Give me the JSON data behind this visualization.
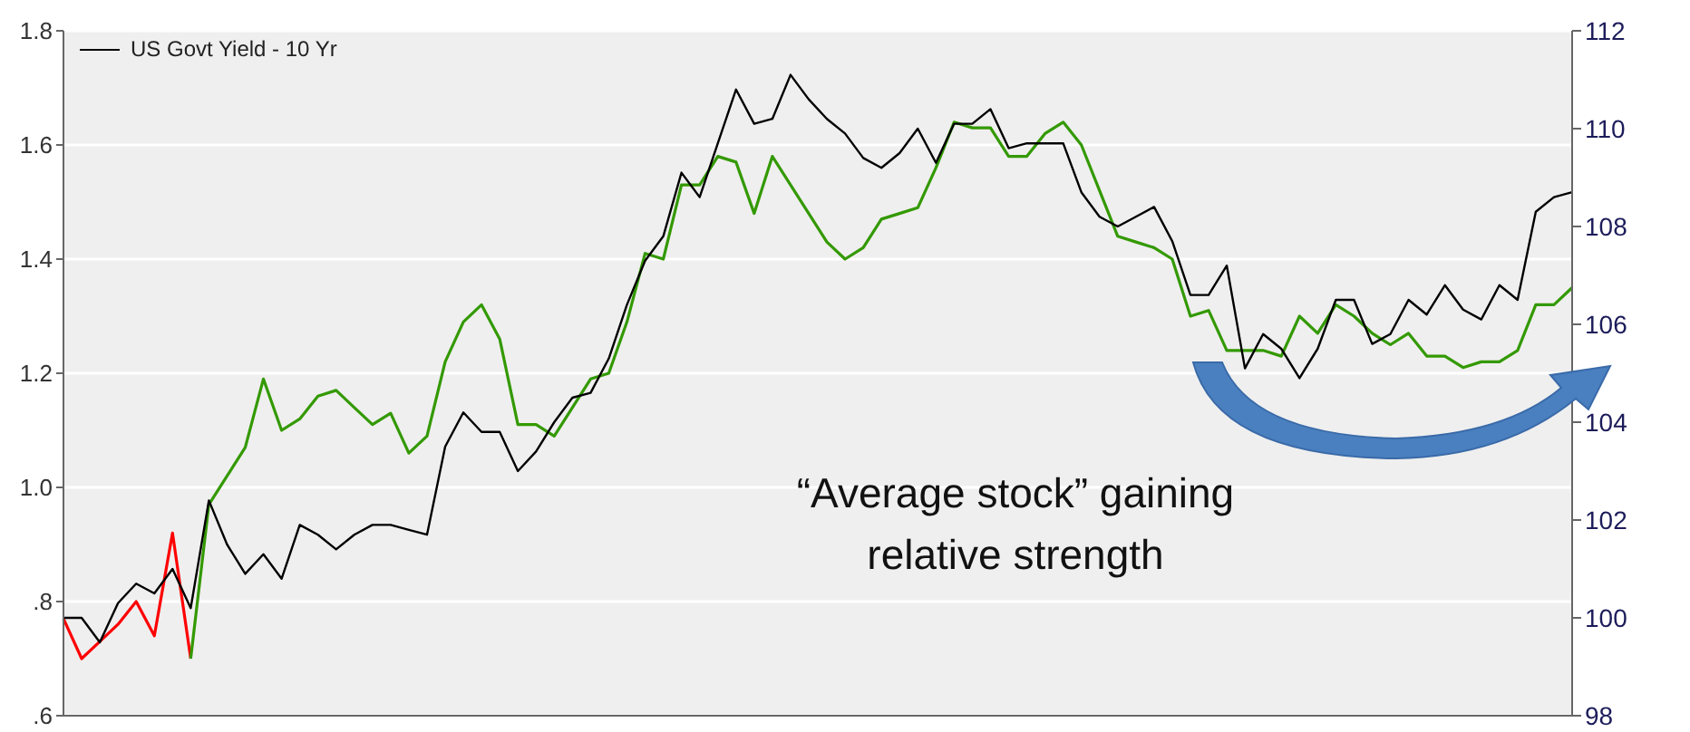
{
  "chart_data": {
    "type": "line",
    "categories": [
      null,
      null,
      null,
      null,
      null,
      null,
      null,
      null,
      null,
      null,
      null,
      null,
      null,
      null,
      null,
      null,
      null,
      null,
      null,
      null,
      null,
      null,
      null,
      null,
      null,
      null,
      null,
      null,
      null,
      null,
      null,
      null,
      null,
      null,
      null,
      null,
      null,
      null,
      null,
      null,
      null,
      null,
      null,
      null,
      null,
      null,
      null,
      null,
      null,
      null,
      null,
      null,
      null,
      null,
      null,
      null,
      null,
      null,
      null,
      null,
      null,
      null,
      null,
      null,
      null,
      null,
      null,
      null,
      null,
      null,
      null,
      null,
      null,
      null,
      null,
      null,
      null,
      null,
      null,
      null,
      null,
      null,
      null,
      null
    ],
    "series": [
      {
        "color": "#ff0000",
        "values": [
          0.77,
          0.7,
          0.73,
          0.76,
          0.8,
          0.74,
          0.92,
          0.7,
          null,
          null,
          null,
          null,
          null,
          null,
          null,
          null,
          null,
          null,
          null,
          null,
          null,
          null,
          null,
          null,
          null,
          null,
          null,
          null,
          null,
          null,
          null,
          null,
          null,
          null,
          null,
          null,
          null,
          null,
          null,
          null,
          null,
          null,
          null,
          null,
          null,
          null,
          null,
          null,
          null,
          null,
          null,
          null,
          null,
          null,
          null,
          null,
          null,
          null,
          null,
          null,
          null,
          null,
          null,
          null,
          null,
          null,
          null,
          null,
          null,
          null,
          null,
          null,
          null,
          null,
          null,
          null,
          null,
          null,
          null,
          null,
          null,
          null,
          null,
          null
        ]
      },
      {
        "color": "#339900",
        "values": [
          null,
          null,
          null,
          null,
          null,
          null,
          null,
          0.7,
          0.97,
          1.02,
          1.07,
          1.19,
          1.1,
          1.12,
          1.16,
          1.17,
          1.14,
          1.11,
          1.13,
          1.06,
          1.09,
          1.22,
          1.29,
          1.32,
          1.26,
          1.11,
          1.11,
          1.09,
          1.14,
          1.19,
          1.2,
          1.29,
          1.41,
          1.4,
          1.53,
          1.53,
          1.58,
          1.57,
          1.48,
          1.58,
          1.53,
          1.48,
          1.43,
          1.4,
          1.42,
          1.47,
          1.48,
          1.49,
          1.56,
          1.64,
          1.63,
          1.63,
          1.58,
          1.58,
          1.62,
          1.64,
          1.6,
          1.52,
          1.44,
          1.43,
          1.42,
          1.4,
          1.3,
          1.31,
          1.24,
          1.24,
          1.24,
          1.23,
          1.3,
          1.27,
          1.32,
          1.3,
          1.27,
          1.25,
          1.27,
          1.23,
          1.23,
          1.21,
          1.22,
          1.22,
          1.24,
          1.32,
          1.32,
          1.35
        ]
      },
      {
        "name": "US Govt Yield - 10 Yr",
        "color": "#000000",
        "axis": "y2",
        "values": [
          100.0,
          100.0,
          99.5,
          100.3,
          100.7,
          100.5,
          101.0,
          100.2,
          102.4,
          101.5,
          100.9,
          101.3,
          100.8,
          101.9,
          101.7,
          101.4,
          101.7,
          101.9,
          101.9,
          101.8,
          101.7,
          103.5,
          104.2,
          103.8,
          103.8,
          103.0,
          103.4,
          104.0,
          104.5,
          104.6,
          105.3,
          106.4,
          107.3,
          107.8,
          109.1,
          108.6,
          109.7,
          110.8,
          110.1,
          110.2,
          111.1,
          110.6,
          110.2,
          109.9,
          109.4,
          109.2,
          109.5,
          110.0,
          109.3,
          110.1,
          110.1,
          110.4,
          109.6,
          109.7,
          109.7,
          109.7,
          108.7,
          108.2,
          108.0,
          108.2,
          108.4,
          107.7,
          106.6,
          106.6,
          107.2,
          105.1,
          105.8,
          105.5,
          104.9,
          105.5,
          106.5,
          106.5,
          105.6,
          105.8,
          106.5,
          106.2,
          106.8,
          106.3,
          106.1,
          106.8,
          106.5,
          108.3,
          108.6,
          108.7
        ]
      }
    ],
    "ylim": [
      0.6,
      1.8
    ],
    "yticks": [
      {
        "value": 0.6,
        "label": ".6"
      },
      {
        "value": 0.8,
        "label": ".8"
      },
      {
        "value": 1.0,
        "label": "1.0"
      },
      {
        "value": 1.2,
        "label": "1.2"
      },
      {
        "value": 1.4,
        "label": "1.4"
      },
      {
        "value": 1.6,
        "label": "1.6"
      },
      {
        "value": 1.8,
        "label": "1.8"
      }
    ],
    "y2lim": [
      98,
      112
    ],
    "y2ticks": [
      98,
      100,
      102,
      104,
      106,
      108,
      110,
      112
    ],
    "grid": "y",
    "legend": "top left",
    "annotations": [
      "“Average stock” gaining relative strength"
    ]
  }
}
